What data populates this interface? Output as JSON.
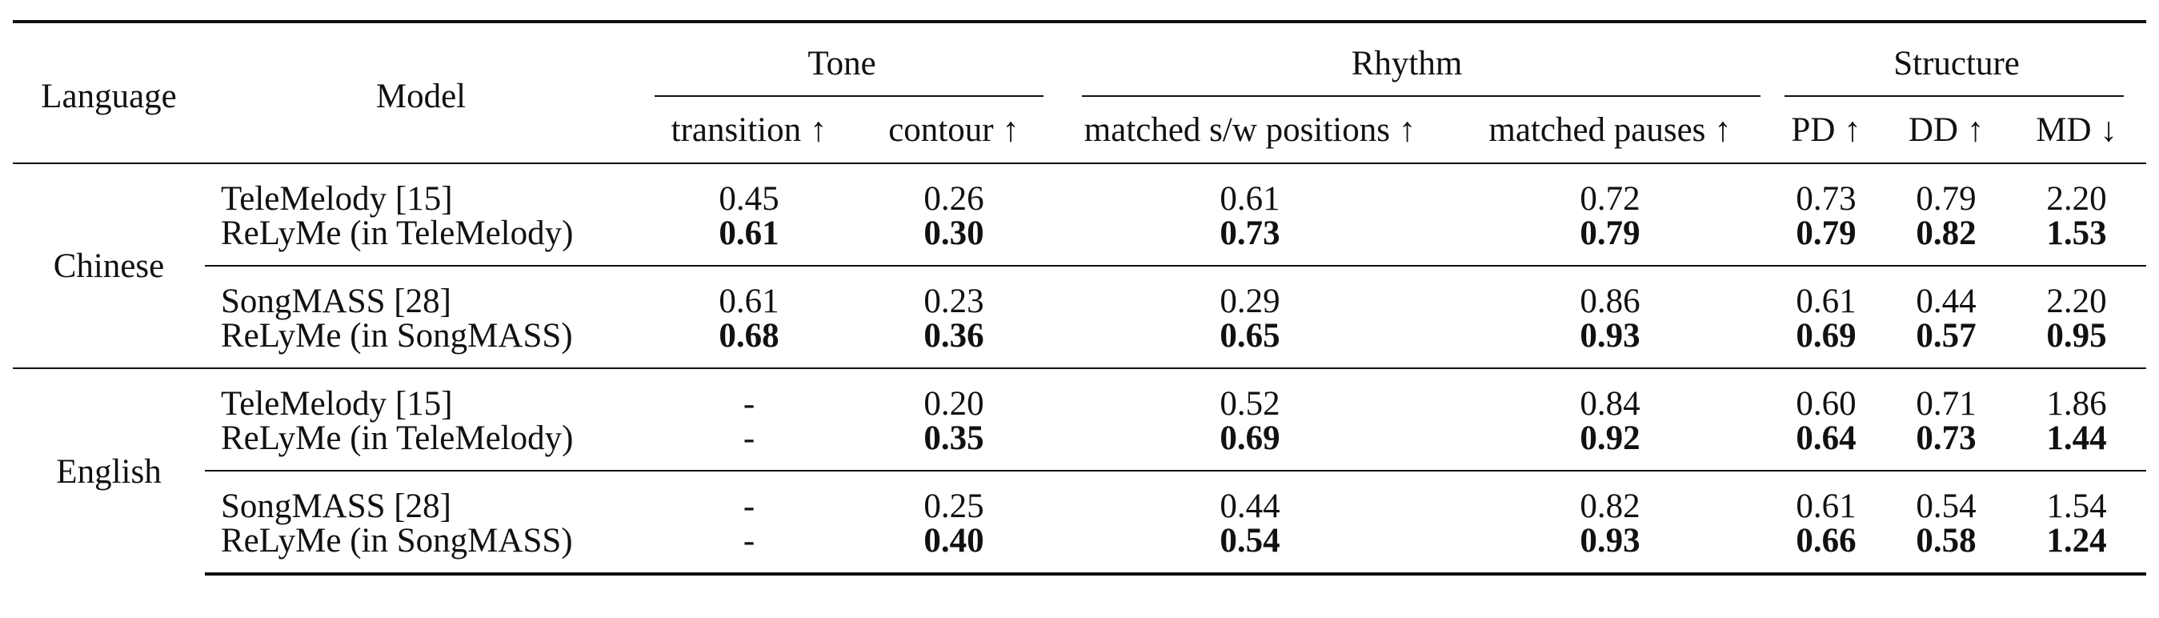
{
  "header": {
    "language": "Language",
    "model": "Model",
    "groups": {
      "tone": "Tone",
      "rhythm": "Rhythm",
      "structure": "Structure"
    },
    "columns": [
      "transition ↑",
      "contour ↑",
      "matched s/w positions ↑",
      "matched pauses ↑",
      "PD ↑",
      "DD ↑",
      "MD ↓"
    ]
  },
  "sections": [
    {
      "language": "Chinese",
      "rows": [
        {
          "model": "TeleMelody [15]",
          "values": [
            "0.45",
            "0.26",
            "0.61",
            "0.72",
            "0.73",
            "0.79",
            "2.20"
          ],
          "bold": false
        },
        {
          "model": "ReLyMe (in TeleMelody)",
          "values": [
            "0.61",
            "0.30",
            "0.73",
            "0.79",
            "0.79",
            "0.82",
            "1.53"
          ],
          "bold": true
        },
        {
          "model": "SongMASS [28]",
          "values": [
            "0.61",
            "0.23",
            "0.29",
            "0.86",
            "0.61",
            "0.44",
            "2.20"
          ],
          "bold": false
        },
        {
          "model": "ReLyMe (in SongMASS)",
          "values": [
            "0.68",
            "0.36",
            "0.65",
            "0.93",
            "0.69",
            "0.57",
            "0.95"
          ],
          "bold": true
        }
      ]
    },
    {
      "language": "English",
      "rows": [
        {
          "model": "TeleMelody [15]",
          "values": [
            "-",
            "0.20",
            "0.52",
            "0.84",
            "0.60",
            "0.71",
            "1.86"
          ],
          "bold": false
        },
        {
          "model": "ReLyMe (in TeleMelody)",
          "values": [
            "-",
            "0.35",
            "0.69",
            "0.92",
            "0.64",
            "0.73",
            "1.44"
          ],
          "bold": true
        },
        {
          "model": "SongMASS [28]",
          "values": [
            "-",
            "0.25",
            "0.44",
            "0.82",
            "0.61",
            "0.54",
            "1.54"
          ],
          "bold": false
        },
        {
          "model": "ReLyMe (in SongMASS)",
          "values": [
            "-",
            "0.40",
            "0.54",
            "0.93",
            "0.66",
            "0.58",
            "1.24"
          ],
          "bold": true
        }
      ]
    }
  ]
}
